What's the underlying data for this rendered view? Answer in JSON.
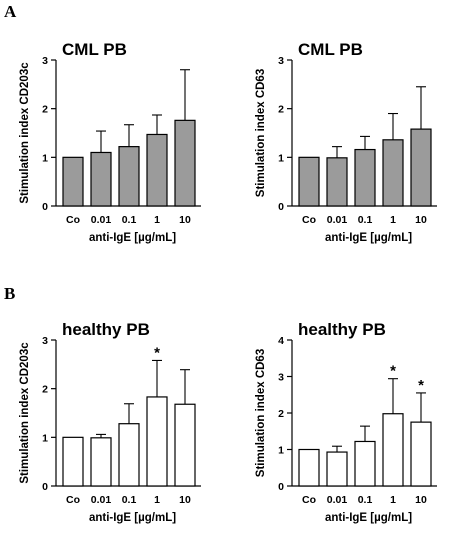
{
  "panels": {
    "a": "A",
    "b": "B"
  },
  "chart_data": [
    {
      "type": "bar",
      "title": "CML PB",
      "xlabel": "anti-IgE [µg/mL]",
      "ylabel": "Stimulation index CD203c",
      "categories": [
        "Co",
        "0.01",
        "0.1",
        "1",
        "10"
      ],
      "values": [
        1.0,
        1.1,
        1.22,
        1.47,
        1.76
      ],
      "error_plus": [
        0,
        0.44,
        0.45,
        0.4,
        1.04
      ],
      "significant": [
        false,
        false,
        false,
        false,
        false
      ],
      "ylim": [
        0,
        3
      ],
      "yticks": [
        0,
        1,
        2,
        3
      ],
      "bar_color": "#9b9b9b"
    },
    {
      "type": "bar",
      "title": "CML PB",
      "xlabel": "anti-IgE [µg/mL]",
      "ylabel": "Stimulation index CD63",
      "categories": [
        "Co",
        "0.01",
        "0.1",
        "1",
        "10"
      ],
      "values": [
        1.0,
        0.99,
        1.16,
        1.36,
        1.58
      ],
      "error_plus": [
        0,
        0.23,
        0.27,
        0.54,
        0.87
      ],
      "significant": [
        false,
        false,
        false,
        false,
        false
      ],
      "ylim": [
        0,
        3
      ],
      "yticks": [
        0,
        1,
        2,
        3
      ],
      "bar_color": "#9b9b9b"
    },
    {
      "type": "bar",
      "title": "healthy PB",
      "xlabel": "anti-IgE [µg/mL]",
      "ylabel": "Stimulation index CD203c",
      "categories": [
        "Co",
        "0.01",
        "0.1",
        "1",
        "10"
      ],
      "values": [
        1.0,
        0.99,
        1.28,
        1.83,
        1.68
      ],
      "error_plus": [
        0,
        0.07,
        0.41,
        0.75,
        0.71
      ],
      "significant": [
        false,
        false,
        false,
        true,
        false
      ],
      "significance_marker": "*",
      "ylim": [
        0,
        3
      ],
      "yticks": [
        0,
        1,
        2,
        3
      ],
      "bar_color": "#ffffff"
    },
    {
      "type": "bar",
      "title": "healthy PB",
      "xlabel": "anti-IgE [µg/mL]",
      "ylabel": "Stimulation index CD63",
      "categories": [
        "Co",
        "0.01",
        "0.1",
        "1",
        "10"
      ],
      "values": [
        1.0,
        0.93,
        1.22,
        1.98,
        1.75
      ],
      "error_plus": [
        0,
        0.16,
        0.42,
        0.96,
        0.8
      ],
      "significant": [
        false,
        false,
        false,
        true,
        true
      ],
      "significance_marker": "*",
      "ylim": [
        0,
        4
      ],
      "yticks": [
        0,
        1,
        2,
        3,
        4
      ],
      "bar_color": "#ffffff"
    }
  ]
}
